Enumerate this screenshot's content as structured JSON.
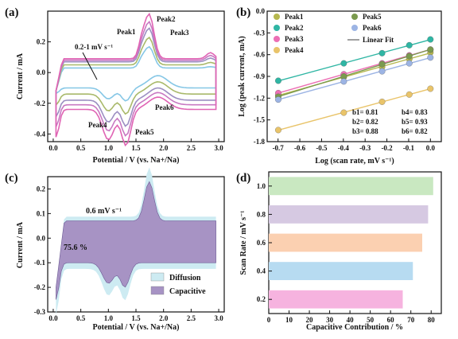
{
  "chart_data": [
    {
      "panel": "(a)",
      "type": "line",
      "xlabel": "Potential / V (vs. Na+/Na)",
      "ylabel": "Current / mA",
      "xlim": [
        -0.1,
        3.1
      ],
      "ylim": [
        -0.45,
        0.4
      ],
      "xticks": [
        0.0,
        0.5,
        1.0,
        1.5,
        2.0,
        2.5,
        3.0
      ],
      "yticks": [
        -0.4,
        -0.2,
        0.0,
        0.2
      ],
      "annotations": [
        "0.2-1 mV s⁻¹",
        "Peak1",
        "Peak2",
        "Peak3",
        "Peak4",
        "Peak5",
        "Peak6"
      ],
      "series": [
        {
          "rate": 0.2,
          "color": "#86c7e6",
          "oxPeak": 0.17,
          "redPeak": -0.13,
          "upperBase": 0.03,
          "lowerBase": -0.1
        },
        {
          "rate": 0.4,
          "color": "#a9b96a",
          "oxPeak": 0.22,
          "redPeak": -0.2,
          "upperBase": 0.05,
          "lowerBase": -0.14
        },
        {
          "rate": 0.6,
          "color": "#9c8fc2",
          "oxPeak": 0.27,
          "redPeak": -0.26,
          "upperBase": 0.07,
          "lowerBase": -0.18
        },
        {
          "rate": 0.8,
          "color": "#c879c2",
          "oxPeak": 0.31,
          "redPeak": -0.31,
          "upperBase": 0.08,
          "lowerBase": -0.21
        },
        {
          "rate": 1.0,
          "color": "#e064b4",
          "oxPeak": 0.36,
          "redPeak": -0.36,
          "upperBase": 0.09,
          "lowerBase": -0.24
        }
      ]
    },
    {
      "panel": "(b)",
      "type": "scatter",
      "xlabel": "Log (scan rate, mV s⁻¹)",
      "ylabel": "Log (peak current, mA)",
      "xlim": [
        -0.75,
        0.05
      ],
      "ylim": [
        -1.8,
        0.0
      ],
      "xticks": [
        -0.7,
        -0.6,
        -0.5,
        -0.4,
        -0.3,
        -0.2,
        -0.1,
        0.0
      ],
      "yticks": [
        -1.8,
        -1.5,
        -1.2,
        -0.9,
        -0.6,
        -0.3,
        0.0
      ],
      "x": [
        -0.699,
        -0.398,
        -0.222,
        -0.097,
        0.0
      ],
      "legend": [
        "Peak1",
        "Peak2",
        "Peak3",
        "Peak4",
        "Peak5",
        "Peak6",
        "Linear Fit"
      ],
      "series": [
        {
          "name": "Peak1",
          "color": "#b6b84f",
          "y": [
            -1.16,
            -0.91,
            -0.77,
            -0.66,
            -0.57
          ]
        },
        {
          "name": "Peak2",
          "color": "#2fb6a4",
          "y": [
            -0.96,
            -0.72,
            -0.58,
            -0.47,
            -0.39
          ]
        },
        {
          "name": "Peak3",
          "color": "#ec6fb4",
          "y": [
            -1.13,
            -0.87,
            -0.72,
            -0.61,
            -0.53
          ]
        },
        {
          "name": "Peak4",
          "color": "#e9c46a",
          "y": [
            -1.64,
            -1.4,
            -1.25,
            -1.15,
            -1.07
          ]
        },
        {
          "name": "Peak5",
          "color": "#7a9a4e",
          "y": [
            -1.18,
            -0.9,
            -0.73,
            -0.62,
            -0.53
          ]
        },
        {
          "name": "Peak6",
          "color": "#9cb4e4",
          "y": [
            -1.22,
            -0.97,
            -0.83,
            -0.72,
            -0.64
          ]
        }
      ],
      "annotations": [
        "b1= 0.81",
        "b4= 0.83",
        "b2= 0.82",
        "b5= 0.93",
        "b3= 0.88",
        "b6= 0.82"
      ]
    },
    {
      "panel": "(c)",
      "type": "area",
      "xlabel": "Potential / V (vs. Na+/Na)",
      "ylabel": "Current / mA",
      "xlim": [
        -0.1,
        3.1
      ],
      "ylim": [
        -0.3,
        0.25
      ],
      "xticks": [
        0.0,
        0.5,
        1.0,
        1.5,
        2.0,
        2.5,
        3.0
      ],
      "yticks": [
        -0.3,
        -0.2,
        -0.1,
        0.0,
        0.1,
        0.2
      ],
      "annotations": [
        "0.6 mV s⁻¹",
        "75.6 %"
      ],
      "legend": [
        "Diffusion",
        "Capacitive"
      ],
      "colors": {
        "diffusion": "#cdebf2",
        "capacitive": "#a793c4"
      }
    },
    {
      "panel": "(d)",
      "type": "bar",
      "orientation": "horizontal",
      "xlabel": "Capacitive Contribution / %",
      "ylabel": "Scan Rate / mV s⁻¹",
      "xlim": [
        0,
        85
      ],
      "xticks": [
        0,
        10,
        20,
        30,
        40,
        50,
        60,
        70,
        80
      ],
      "categories": [
        "0.2",
        "0.4",
        "0.6",
        "0.8",
        "1.0"
      ],
      "values": [
        66,
        71,
        75.6,
        78.5,
        81
      ],
      "colors": [
        "#f6b3df",
        "#b7dbf1",
        "#fbd0b1",
        "#d6c9e2",
        "#c9e8c1"
      ]
    }
  ]
}
